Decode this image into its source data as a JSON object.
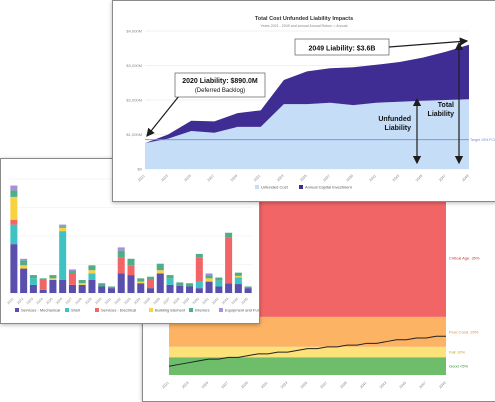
{
  "colors": {
    "unfunded": "#c6ddf7",
    "annual_capital": "#3f2d93",
    "target_line": "#7d86d6",
    "arrow": "#1e1e1e",
    "band_red": "#f26566",
    "band_orange": "#fcb364",
    "band_yellow": "#fde27a",
    "band_green": "#6dbd6a",
    "services_mechanical": "#5b4fad",
    "shell": "#3ec2c3",
    "services_electrical": "#f26566",
    "building_element": "#f9d23f",
    "interiors": "#4fae87",
    "equipment_furnishings": "#a78fd9"
  },
  "chart_data": [
    {
      "type": "area",
      "title": "Total Cost Unfunded Liability Impacts",
      "subtitle": "Years 2021 - 2049 and annual Annual Return = Annual",
      "x": [
        "2021",
        "2023",
        "2025",
        "2027",
        "2029",
        "2031",
        "2033",
        "2035",
        "2037",
        "2039",
        "2041",
        "2043",
        "2045",
        "2047",
        "2049"
      ],
      "series": [
        {
          "name": "Unfunded Cost",
          "values": [
            0.75,
            0.88,
            1.1,
            1.05,
            1.22,
            1.22,
            1.88,
            1.88,
            1.92,
            1.85,
            1.92,
            1.95,
            1.98,
            2.0,
            2.02
          ]
        },
        {
          "name": "Annual Capital Investment",
          "values": [
            0.0,
            0.12,
            0.3,
            0.33,
            0.4,
            0.48,
            0.7,
            0.95,
            1.0,
            1.1,
            1.1,
            1.15,
            1.25,
            1.4,
            1.58
          ]
        }
      ],
      "ylim": [
        0,
        4
      ],
      "yticks": [
        "$0",
        "$1,000M",
        "$2,000M",
        "$3,000M",
        "$4,000M"
      ],
      "target_label": "Target 15% FCI",
      "target_value": 0.85,
      "annotations": {
        "liability_2020_line1": "2020 Liability: $890.0M",
        "liability_2020_line2": "(Deferred Backlog)",
        "liability_2049": "2049 Liability: $3.6B",
        "unfunded_liability_line1": "Unfunded",
        "unfunded_liability_line2": "Liability",
        "total_liability_line1": "Total",
        "total_liability_line2": "Liability"
      },
      "legend": [
        "Unfunded Cost",
        "Annual Capital Investment"
      ],
      "legend_position": "bottom"
    },
    {
      "type": "bar",
      "stacked": true,
      "categories": [
        "2021",
        "2022",
        "2023",
        "2024",
        "2025",
        "2026",
        "2027",
        "2028",
        "2029",
        "2030",
        "2031",
        "2032",
        "2033",
        "2034",
        "2035",
        "2036",
        "2037",
        "2038",
        "2039",
        "2040",
        "2041",
        "2042",
        "2043",
        "2044",
        "2045"
      ],
      "series": [
        {
          "name": "Services - Mechanical",
          "values": [
            300,
            150,
            50,
            20,
            80,
            80,
            50,
            50,
            80,
            40,
            30,
            120,
            110,
            60,
            30,
            120,
            50,
            45,
            40,
            30,
            70,
            40,
            60,
            55,
            30
          ]
        },
        {
          "name": "Shell",
          "values": [
            120,
            0,
            40,
            0,
            0,
            300,
            0,
            0,
            40,
            0,
            0,
            0,
            0,
            0,
            0,
            0,
            40,
            0,
            0,
            40,
            0,
            35,
            0,
            40,
            0
          ]
        },
        {
          "name": "Services - Electrical",
          "values": [
            30,
            0,
            0,
            60,
            0,
            0,
            70,
            0,
            0,
            0,
            0,
            100,
            60,
            0,
            50,
            0,
            0,
            0,
            0,
            150,
            0,
            0,
            280,
            0,
            0
          ]
        },
        {
          "name": "Building Element",
          "values": [
            140,
            20,
            0,
            0,
            10,
            20,
            0,
            10,
            20,
            0,
            0,
            0,
            0,
            10,
            0,
            20,
            0,
            0,
            0,
            0,
            20,
            0,
            0,
            10,
            0
          ]
        },
        {
          "name": "Interiors",
          "values": [
            40,
            30,
            20,
            10,
            20,
            10,
            15,
            20,
            30,
            20,
            10,
            40,
            40,
            20,
            20,
            40,
            20,
            20,
            20,
            20,
            20,
            20,
            30,
            20,
            10
          ]
        },
        {
          "name": "Equipment and Furnishings",
          "values": [
            30,
            10,
            0,
            0,
            0,
            10,
            10,
            0,
            0,
            0,
            0,
            20,
            0,
            0,
            0,
            0,
            0,
            0,
            0,
            0,
            10,
            0,
            0,
            0,
            0
          ]
        }
      ],
      "ylim": [
        0,
        700
      ],
      "legend_position": "bottom"
    },
    {
      "type": "line",
      "bands": [
        {
          "name": "Critical Age: 35%",
          "from": 0.33,
          "to": 1.0
        },
        {
          "name": "Poor Cond. 20%",
          "from": 0.16,
          "to": 0.33
        },
        {
          "name": "Fair 10%",
          "from": 0.1,
          "to": 0.16
        },
        {
          "name": "Good <5%",
          "from": 0.0,
          "to": 0.1
        }
      ],
      "x": [
        "2021",
        "2022",
        "2023",
        "2024",
        "2025",
        "2026",
        "2027",
        "2028",
        "2029",
        "2030",
        "2031",
        "2032",
        "2033",
        "2034",
        "2035",
        "2036",
        "2037",
        "2038",
        "2039",
        "2040",
        "2041",
        "2042",
        "2043",
        "2044",
        "2045",
        "2046",
        "2047",
        "2048",
        "2049"
      ],
      "values": [
        0.05,
        0.06,
        0.07,
        0.08,
        0.09,
        0.09,
        0.1,
        0.1,
        0.11,
        0.12,
        0.12,
        0.13,
        0.13,
        0.14,
        0.15,
        0.15,
        0.16,
        0.16,
        0.17,
        0.17,
        0.18,
        0.18,
        0.19,
        0.2,
        0.2,
        0.21,
        0.21,
        0.22,
        0.22
      ],
      "ylim": [
        0,
        1.0
      ]
    }
  ]
}
